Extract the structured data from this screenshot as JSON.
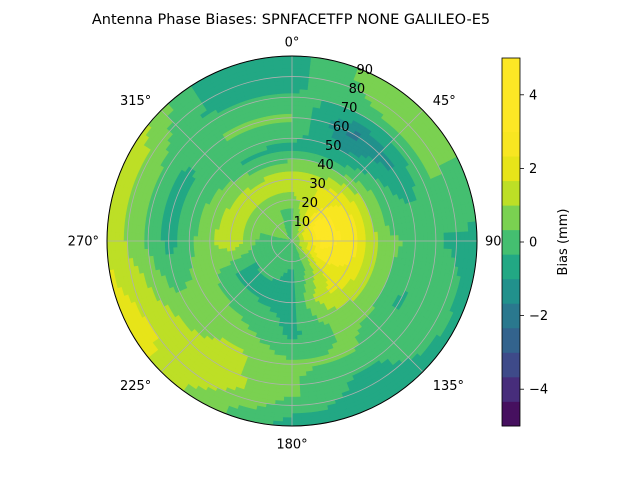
{
  "chart_data": {
    "type": "heatmap",
    "projection": "polar",
    "title": "Antenna Phase Biases: SPNFACETFP      NONE GALILEO-E5",
    "theta_direction": "clockwise",
    "theta_zero": "top",
    "theta_ticks": [
      {
        "value": 0,
        "label": "0°"
      },
      {
        "value": 45,
        "label": "45°"
      },
      {
        "value": 90,
        "label": "90°"
      },
      {
        "value": 135,
        "label": "135°"
      },
      {
        "value": 180,
        "label": "180°"
      },
      {
        "value": 225,
        "label": "225°"
      },
      {
        "value": 270,
        "label": "270°"
      },
      {
        "value": 315,
        "label": "315°"
      }
    ],
    "r_ticks": [
      {
        "value": 10,
        "label": "10"
      },
      {
        "value": 20,
        "label": "20"
      },
      {
        "value": 30,
        "label": "30"
      },
      {
        "value": 40,
        "label": "40"
      },
      {
        "value": 50,
        "label": "50"
      },
      {
        "value": 60,
        "label": "60"
      },
      {
        "value": 70,
        "label": "70"
      },
      {
        "value": 80,
        "label": "80"
      },
      {
        "value": 90,
        "label": "90"
      }
    ],
    "rlim": [
      0,
      90
    ],
    "grid": true,
    "colorbar": {
      "label": "Bias (mm)",
      "range": [
        -5,
        5
      ],
      "ticks": [
        {
          "value": -4,
          "label": "−4"
        },
        {
          "value": -2,
          "label": "−2"
        },
        {
          "value": 0,
          "label": "0"
        },
        {
          "value": 2,
          "label": "2"
        },
        {
          "value": 4,
          "label": "4"
        }
      ],
      "levels": [
        -5,
        -4.3333,
        -3.6667,
        -3,
        -2.3333,
        -1.6667,
        -1,
        -0.3333,
        0.3333,
        1,
        1.6667,
        2.3333,
        3,
        3.6667,
        4.3333,
        5
      ],
      "colors": [
        "#440154",
        "#482878",
        "#3e4989",
        "#31688e",
        "#26828e",
        "#1f9e89",
        "#35b779",
        "#6ece58",
        "#b5de2b",
        "#fde725",
        "#481a6c",
        "#472f7d",
        "#3b528b",
        "#2c728e",
        "#21918c"
      ],
      "palette": [
        "#46105f",
        "#472d7b",
        "#3e4a89",
        "#33638d",
        "#2a788e",
        "#21918c",
        "#22a884",
        "#44bf70",
        "#7ad151",
        "#bddf26",
        "#e7e419",
        "#f8e621",
        "#fde725",
        "#fde725",
        "#fde725"
      ]
    },
    "grid_resolution": {
      "azimuth_step_deg": 30,
      "elevation_step_deg": 15
    },
    "azimuths": [
      0,
      30,
      60,
      90,
      120,
      150,
      180,
      210,
      240,
      270,
      300,
      330
    ],
    "radii": [
      0,
      15,
      30,
      45,
      60,
      75,
      90
    ],
    "values": [
      [
        0.3,
        0.3,
        0.3,
        0.3,
        0.3,
        0.3,
        0.3,
        0.3,
        0.3,
        0.3,
        0.3,
        0.3
      ],
      [
        0.2,
        1.8,
        3.6,
        3.4,
        2.6,
        0.5,
        -0.4,
        -0.2,
        -0.3,
        0.1,
        0.6,
        0.4
      ],
      [
        1.6,
        1.7,
        2.4,
        2.7,
        2.2,
        1.6,
        -0.5,
        -0.5,
        -0.4,
        1.6,
        1.3,
        1.3
      ],
      [
        -0.5,
        -0.5,
        0.4,
        0.4,
        0.8,
        0.5,
        -0.5,
        0.3,
        0.6,
        0.5,
        0.3,
        -0.4
      ],
      [
        0.4,
        -1.9,
        -0.9,
        0.3,
        -0.5,
        0.4,
        0.4,
        1.2,
        0.5,
        -0.6,
        -0.6,
        0.5
      ],
      [
        -0.5,
        0.3,
        0.5,
        -0.4,
        0.3,
        -0.6,
        0.4,
        1.4,
        1.5,
        0.6,
        0.5,
        -0.5
      ],
      [
        -0.6,
        0.8,
        0.4,
        -0.5,
        -0.6,
        -0.6,
        -0.7,
        0.6,
        2.2,
        1.5,
        1.6,
        -0.5
      ]
    ]
  }
}
